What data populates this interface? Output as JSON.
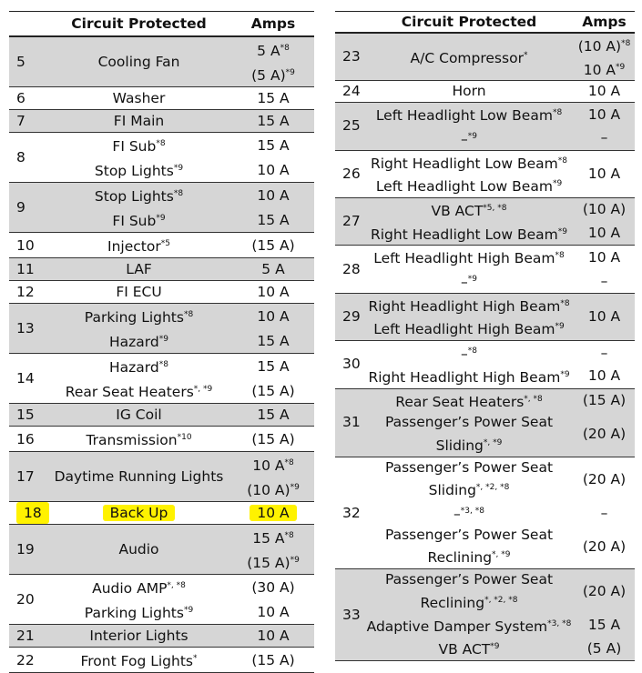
{
  "tables": [
    {
      "header": [
        "Circuit Protected",
        "Amps"
      ],
      "rows": [
        {
          "number": 5,
          "items": [
            {
              "circuit": [
                {
                  "text": "Cooling Fan"
                }
              ],
              "amps": [
                {
                  "text": "5 A",
                  "sup": "*8"
                },
                {
                  "text": "(5 A)",
                  "sup": "*9"
                }
              ]
            }
          ]
        },
        {
          "number": 6,
          "items": [
            {
              "circuit": [
                {
                  "text": "Washer"
                }
              ],
              "amps": [
                {
                  "text": "15 A"
                }
              ]
            }
          ]
        },
        {
          "number": 7,
          "items": [
            {
              "circuit": [
                {
                  "text": "FI Main"
                }
              ],
              "amps": [
                {
                  "text": "15 A"
                }
              ]
            }
          ]
        },
        {
          "number": 8,
          "items": [
            {
              "circuit": [
                {
                  "text": "FI Sub",
                  "sup": "*8"
                }
              ],
              "amps": [
                {
                  "text": "15 A"
                }
              ]
            },
            {
              "circuit": [
                {
                  "text": "Stop Lights",
                  "sup": "*9"
                }
              ],
              "amps": [
                {
                  "text": "10 A"
                }
              ]
            }
          ]
        },
        {
          "number": 9,
          "items": [
            {
              "circuit": [
                {
                  "text": "Stop Lights",
                  "sup": "*8"
                }
              ],
              "amps": [
                {
                  "text": "10 A"
                }
              ]
            },
            {
              "circuit": [
                {
                  "text": "FI Sub",
                  "sup": "*9"
                }
              ],
              "amps": [
                {
                  "text": "15 A"
                }
              ]
            }
          ]
        },
        {
          "number": 10,
          "items": [
            {
              "circuit": [
                {
                  "text": "Injector",
                  "sup": "*5"
                }
              ],
              "amps": [
                {
                  "text": "(15 A)"
                }
              ]
            }
          ]
        },
        {
          "number": 11,
          "items": [
            {
              "circuit": [
                {
                  "text": "LAF"
                }
              ],
              "amps": [
                {
                  "text": "5 A"
                }
              ]
            }
          ]
        },
        {
          "number": 12,
          "items": [
            {
              "circuit": [
                {
                  "text": "FI ECU"
                }
              ],
              "amps": [
                {
                  "text": "10 A"
                }
              ]
            }
          ]
        },
        {
          "number": 13,
          "items": [
            {
              "circuit": [
                {
                  "text": "Parking Lights",
                  "sup": "*8"
                }
              ],
              "amps": [
                {
                  "text": "10 A"
                }
              ]
            },
            {
              "circuit": [
                {
                  "text": "Hazard",
                  "sup": "*9"
                }
              ],
              "amps": [
                {
                  "text": "15 A"
                }
              ]
            }
          ]
        },
        {
          "number": 14,
          "items": [
            {
              "circuit": [
                {
                  "text": "Hazard",
                  "sup": "*8"
                }
              ],
              "amps": [
                {
                  "text": "15 A"
                }
              ]
            },
            {
              "circuit": [
                {
                  "text": "Rear Seat Heaters",
                  "sup": "*, *9"
                }
              ],
              "amps": [
                {
                  "text": "(15 A)"
                }
              ]
            }
          ]
        },
        {
          "number": 15,
          "items": [
            {
              "circuit": [
                {
                  "text": "IG Coil"
                }
              ],
              "amps": [
                {
                  "text": "15 A"
                }
              ]
            }
          ]
        },
        {
          "number": 16,
          "items": [
            {
              "circuit": [
                {
                  "text": "Transmission",
                  "sup": "*10"
                }
              ],
              "amps": [
                {
                  "text": "(15 A)"
                }
              ]
            }
          ]
        },
        {
          "number": 17,
          "items": [
            {
              "circuit": [
                {
                  "text": "Daytime Running Lights"
                }
              ],
              "amps": [
                {
                  "text": "10 A",
                  "sup": "*8"
                },
                {
                  "text": "(10 A)",
                  "sup": "*9"
                }
              ]
            }
          ]
        },
        {
          "number": 18,
          "highlighted": true,
          "items": [
            {
              "circuit": [
                {
                  "text": "Back Up"
                }
              ],
              "amps": [
                {
                  "text": "10 A"
                }
              ]
            }
          ]
        },
        {
          "number": 19,
          "items": [
            {
              "circuit": [
                {
                  "text": "Audio"
                }
              ],
              "amps": [
                {
                  "text": "15 A",
                  "sup": "*8"
                },
                {
                  "text": "(15 A)",
                  "sup": "*9"
                }
              ]
            }
          ]
        },
        {
          "number": 20,
          "items": [
            {
              "circuit": [
                {
                  "text": "Audio AMP",
                  "sup": "*, *8"
                }
              ],
              "amps": [
                {
                  "text": "(30 A)"
                }
              ]
            },
            {
              "circuit": [
                {
                  "text": "Parking Lights",
                  "sup": "*9"
                }
              ],
              "amps": [
                {
                  "text": "10 A"
                }
              ]
            }
          ]
        },
        {
          "number": 21,
          "items": [
            {
              "circuit": [
                {
                  "text": "Interior Lights"
                }
              ],
              "amps": [
                {
                  "text": "10 A"
                }
              ]
            }
          ]
        },
        {
          "number": 22,
          "items": [
            {
              "circuit": [
                {
                  "text": "Front Fog Lights",
                  "sup": "*"
                }
              ],
              "amps": [
                {
                  "text": "(15 A)"
                }
              ]
            }
          ]
        }
      ]
    },
    {
      "header": [
        "Circuit Protected",
        "Amps"
      ],
      "rows": [
        {
          "number": 23,
          "items": [
            {
              "circuit": [
                {
                  "text": "A/C Compressor",
                  "sup": "*"
                }
              ],
              "amps": [
                {
                  "text": "(10 A)",
                  "sup": "*8"
                },
                {
                  "text": "10 A",
                  "sup": "*9"
                }
              ]
            }
          ]
        },
        {
          "number": 24,
          "items": [
            {
              "circuit": [
                {
                  "text": "Horn"
                }
              ],
              "amps": [
                {
                  "text": "10 A"
                }
              ]
            }
          ]
        },
        {
          "number": 25,
          "items": [
            {
              "circuit": [
                {
                  "text": "Left Headlight Low Beam",
                  "sup": "*8"
                }
              ],
              "amps": [
                {
                  "text": "10 A"
                }
              ]
            },
            {
              "circuit": [
                {
                  "text": "–",
                  "sup": "*9"
                }
              ],
              "amps": [
                {
                  "text": "–"
                }
              ]
            }
          ]
        },
        {
          "number": 26,
          "items": [
            {
              "circuit": [
                {
                  "text": "Right Headlight Low Beam",
                  "sup": "*8"
                },
                {
                  "text": "Left Headlight Low Beam",
                  "sup": "*9"
                }
              ],
              "amps": [
                {
                  "text": "10 A"
                }
              ]
            }
          ]
        },
        {
          "number": 27,
          "items": [
            {
              "circuit": [
                {
                  "text": "VB ACT",
                  "sup": "*5, *8"
                }
              ],
              "amps": [
                {
                  "text": "(10 A)"
                }
              ]
            },
            {
              "circuit": [
                {
                  "text": "Right Headlight Low Beam",
                  "sup": "*9"
                }
              ],
              "amps": [
                {
                  "text": "10 A"
                }
              ]
            }
          ]
        },
        {
          "number": 28,
          "items": [
            {
              "circuit": [
                {
                  "text": "Left Headlight High Beam",
                  "sup": "*8"
                }
              ],
              "amps": [
                {
                  "text": "10 A"
                }
              ]
            },
            {
              "circuit": [
                {
                  "text": "–",
                  "sup": "*9"
                }
              ],
              "amps": [
                {
                  "text": "–"
                }
              ]
            }
          ]
        },
        {
          "number": 29,
          "items": [
            {
              "circuit": [
                {
                  "text": "Right Headlight High Beam",
                  "sup": "*8"
                },
                {
                  "text": "Left Headlight High Beam",
                  "sup": "*9"
                }
              ],
              "amps": [
                {
                  "text": "10 A"
                }
              ]
            }
          ]
        },
        {
          "number": 30,
          "items": [
            {
              "circuit": [
                {
                  "text": "–",
                  "sup": "*8"
                }
              ],
              "amps": [
                {
                  "text": "–"
                }
              ]
            },
            {
              "circuit": [
                {
                  "text": "Right Headlight High Beam",
                  "sup": "*9"
                }
              ],
              "amps": [
                {
                  "text": "10 A"
                }
              ]
            }
          ]
        },
        {
          "number": 31,
          "items": [
            {
              "circuit": [
                {
                  "text": "Rear Seat Heaters",
                  "sup": "*, *8"
                }
              ],
              "amps": [
                {
                  "text": "(15 A)"
                }
              ]
            },
            {
              "circuit": [
                {
                  "text": "Passenger’s Power Seat"
                },
                {
                  "text": "Sliding",
                  "sup": "*, *9"
                }
              ],
              "amps": [
                {
                  "text": "(20 A)"
                }
              ]
            }
          ]
        },
        {
          "number": 32,
          "items": [
            {
              "circuit": [
                {
                  "text": "Passenger’s Power Seat"
                },
                {
                  "text": "Sliding",
                  "sup": "*, *2, *8"
                }
              ],
              "amps": [
                {
                  "text": "(20 A)"
                }
              ]
            },
            {
              "circuit": [
                {
                  "text": "–",
                  "sup": "*3, *8"
                }
              ],
              "amps": [
                {
                  "text": "–"
                }
              ]
            },
            {
              "circuit": [
                {
                  "text": "Passenger’s Power Seat"
                },
                {
                  "text": "Reclining",
                  "sup": "*, *9"
                }
              ],
              "amps": [
                {
                  "text": "(20 A)"
                }
              ]
            }
          ]
        },
        {
          "number": 33,
          "items": [
            {
              "circuit": [
                {
                  "text": "Passenger’s Power Seat"
                },
                {
                  "text": "Reclining",
                  "sup": "*, *2, *8"
                }
              ],
              "amps": [
                {
                  "text": "(20 A)"
                }
              ]
            },
            {
              "circuit": [
                {
                  "text": "Adaptive Damper System",
                  "sup": "*3, *8"
                }
              ],
              "amps": [
                {
                  "text": "15 A"
                }
              ]
            },
            {
              "circuit": [
                {
                  "text": "VB ACT",
                  "sup": "*9"
                }
              ],
              "amps": [
                {
                  "text": "(5 A)"
                }
              ]
            }
          ]
        }
      ]
    }
  ]
}
